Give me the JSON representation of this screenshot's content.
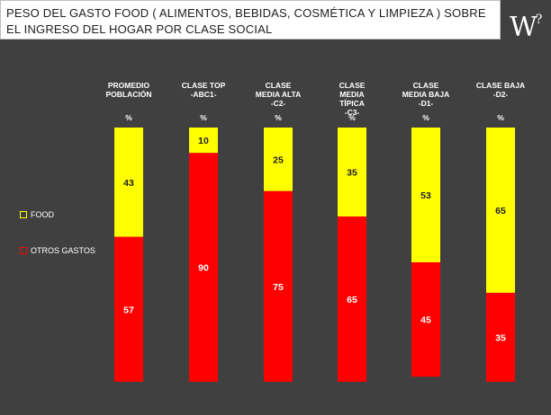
{
  "title": "PESO DEL GASTO FOOD ( ALIMENTOS, BEBIDAS, COSMÉTICA Y LIMPIEZA ) SOBRE EL INGRESO DEL HOGAR POR CLASE SOCIAL",
  "logo_text": "W",
  "logo_mark": "?",
  "colors": {
    "food": "#ffff00",
    "otros": "#ff0000",
    "background": "#404040"
  },
  "chart_data": {
    "type": "bar",
    "stacked": true,
    "categories": [
      "PROMEDIO POBLACIÓN",
      "CLASE TOP -ABC1-",
      "CLASE MEDIA ALTA -C2-",
      "CLASE MEDIA TÍPICA -C3-",
      "CLASE MEDIA BAJA -D1-",
      "CLASE BAJA -D2-"
    ],
    "category_lines": [
      [
        "PROMEDIO",
        "POBLACIÓN"
      ],
      [
        "CLASE TOP",
        "-ABC1-"
      ],
      [
        "CLASE",
        "MEDIA ALTA",
        "-C2-"
      ],
      [
        "CLASE",
        "MEDIA",
        "TÍPICA",
        "-C3-"
      ],
      [
        "CLASE",
        "MEDIA BAJA",
        "-D1-"
      ],
      [
        "CLASE BAJA",
        "-D2-"
      ]
    ],
    "unit_label": "%",
    "series": [
      {
        "name": "FOOD",
        "values": [
          43,
          10,
          25,
          35,
          53,
          65
        ]
      },
      {
        "name": "OTROS GASTOS",
        "values": [
          57,
          90,
          75,
          65,
          45,
          35
        ]
      }
    ],
    "ylim": [
      0,
      100
    ],
    "legend_position": "left"
  }
}
